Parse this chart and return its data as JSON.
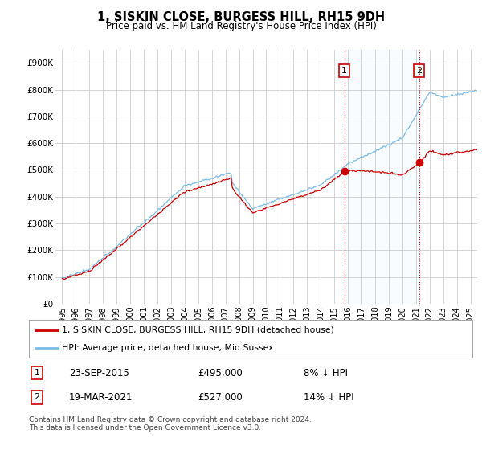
{
  "title": "1, SISKIN CLOSE, BURGESS HILL, RH15 9DH",
  "subtitle": "Price paid vs. HM Land Registry's House Price Index (HPI)",
  "ylabel_ticks": [
    "£0",
    "£100K",
    "£200K",
    "£300K",
    "£400K",
    "£500K",
    "£600K",
    "£700K",
    "£800K",
    "£900K"
  ],
  "ytick_values": [
    0,
    100000,
    200000,
    300000,
    400000,
    500000,
    600000,
    700000,
    800000,
    900000
  ],
  "ylim": [
    0,
    950000
  ],
  "xlim_start": 1994.5,
  "xlim_end": 2025.5,
  "hpi_color": "#7abce8",
  "property_color": "#cc0000",
  "sale1_year": 2015.73,
  "sale1_price": 495000,
  "sale2_year": 2021.22,
  "sale2_price": 527000,
  "vline_color": "#cc0000",
  "shade_color": "#ddeeff",
  "legend_line1": "1, SISKIN CLOSE, BURGESS HILL, RH15 9DH (detached house)",
  "legend_line2": "HPI: Average price, detached house, Mid Sussex",
  "table_row1_num": "1",
  "table_row1_date": "23-SEP-2015",
  "table_row1_price": "£495,000",
  "table_row1_hpi": "8% ↓ HPI",
  "table_row2_num": "2",
  "table_row2_date": "19-MAR-2021",
  "table_row2_price": "£527,000",
  "table_row2_hpi": "14% ↓ HPI",
  "footer": "Contains HM Land Registry data © Crown copyright and database right 2024.\nThis data is licensed under the Open Government Licence v3.0.",
  "background_color": "#ffffff",
  "plot_bg_color": "#ffffff",
  "grid_color": "#cccccc"
}
